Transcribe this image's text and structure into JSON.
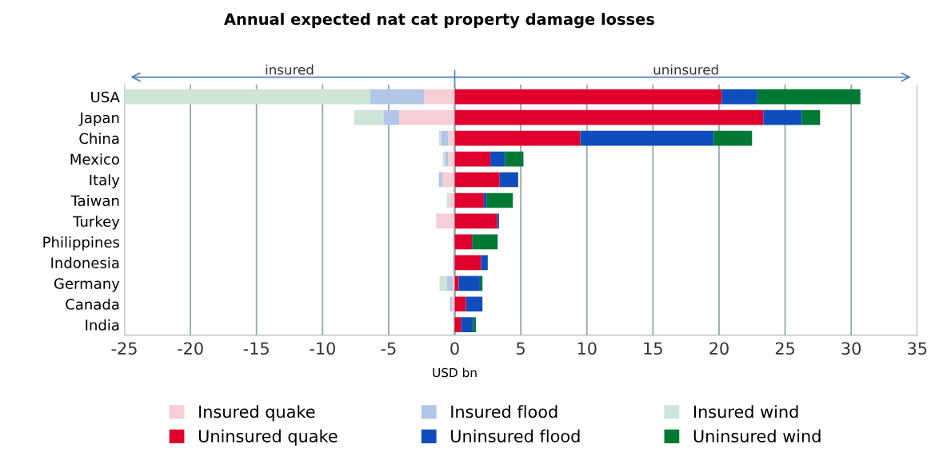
{
  "chart_data": {
    "type": "bar",
    "orientation": "horizontal",
    "stacked": true,
    "title": "Annual expected nat cat property damage losses",
    "xlabel": "USD bn",
    "annotations": [
      "insured",
      "uninsured"
    ],
    "categories": [
      "USA",
      "Japan",
      "China",
      "Mexico",
      "Italy",
      "Taiwan",
      "Turkey",
      "Philippines",
      "Indonesia",
      "Germany",
      "Canada",
      "India"
    ],
    "series": [
      {
        "name": "Insured quake",
        "color": "#f7cdd6",
        "values": [
          -2.3,
          -4.2,
          -0.5,
          -0.5,
          -0.9,
          -0.4,
          -1.4,
          0,
          0,
          -0.15,
          -0.2,
          0
        ]
      },
      {
        "name": "Insured flood",
        "color": "#b4c6e7",
        "values": [
          -4.1,
          -1.2,
          -0.5,
          -0.2,
          -0.3,
          0,
          0,
          0,
          -0.15,
          -0.45,
          -0.15,
          0
        ]
      },
      {
        "name": "Insured wind",
        "color": "#cce5d8",
        "values": [
          -18.6,
          -2.2,
          -0.2,
          -0.2,
          0,
          -0.2,
          0,
          0,
          0,
          -0.55,
          0,
          0
        ]
      },
      {
        "name": "Uninsured quake",
        "color": "#e0002d",
        "values": [
          20.2,
          23.35,
          9.5,
          2.7,
          3.4,
          2.2,
          3.2,
          1.3,
          2.0,
          0.3,
          0.85,
          0.5
        ]
      },
      {
        "name": "Uninsured flood",
        "color": "#0f4dbd",
        "values": [
          2.7,
          2.9,
          10.1,
          1.1,
          1.4,
          0.2,
          0.15,
          0.05,
          0.5,
          1.6,
          1.25,
          0.9
        ]
      },
      {
        "name": "Uninsured wind",
        "color": "#007934",
        "values": [
          7.8,
          1.4,
          2.9,
          1.4,
          0,
          2.0,
          0,
          1.9,
          0,
          0.2,
          0,
          0.2
        ]
      }
    ],
    "xlim": [
      -25,
      35
    ],
    "xticks": [
      -25,
      -20,
      -15,
      -10,
      -5,
      0,
      5,
      10,
      15,
      20,
      25,
      30,
      35
    ],
    "grid": "x",
    "legend": "bottom"
  }
}
